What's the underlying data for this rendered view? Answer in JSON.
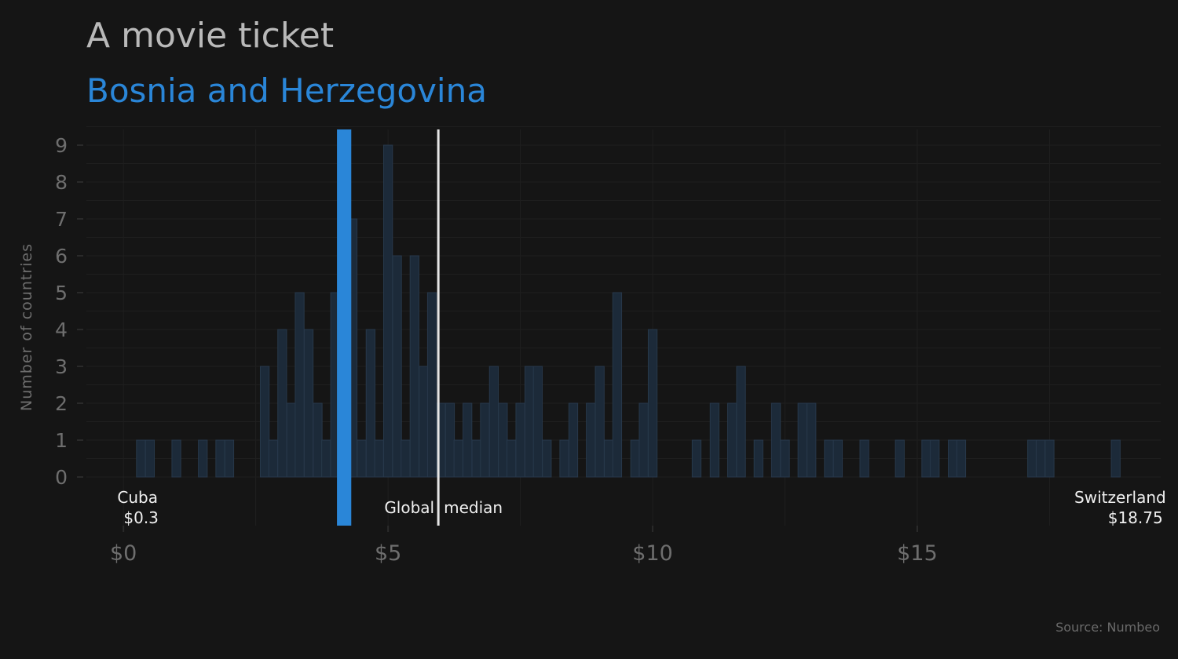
{
  "chart_data": {
    "type": "bar",
    "title": "A movie ticket",
    "subtitle": "Bosnia and Herzegovina",
    "ylabel": "Number of countries",
    "xlabel": "",
    "source": "Source: Numbeo",
    "xlim": [
      -0.7,
      19.6
    ],
    "ylim": [
      0,
      9.5
    ],
    "bin_width": 0.167,
    "x_ticks": [
      {
        "value": 0,
        "label": "$0"
      },
      {
        "value": 5,
        "label": "$5"
      },
      {
        "value": 10,
        "label": "$10"
      },
      {
        "value": 15,
        "label": "$15"
      }
    ],
    "y_ticks": [
      0,
      1,
      2,
      3,
      4,
      5,
      6,
      7,
      8,
      9
    ],
    "y_tick_labels": [
      "0",
      "1",
      "2",
      "3",
      "4",
      "5",
      "6",
      "7",
      "8",
      "9"
    ],
    "grid": true,
    "colors": {
      "background": "#151515",
      "bars": "#1c2a39",
      "bar_edge": "#27384a",
      "highlight": "#2a86d8",
      "median": "#e6e6e6",
      "title": "#b9b9b9",
      "axis_text": "#6e6e6e"
    },
    "bins": [
      {
        "x": 0.33,
        "count": 1
      },
      {
        "x": 0.5,
        "count": 1
      },
      {
        "x": 1.0,
        "count": 1
      },
      {
        "x": 1.5,
        "count": 1
      },
      {
        "x": 1.83,
        "count": 1
      },
      {
        "x": 2.0,
        "count": 1
      },
      {
        "x": 2.67,
        "count": 3
      },
      {
        "x": 2.83,
        "count": 1
      },
      {
        "x": 3.0,
        "count": 4
      },
      {
        "x": 3.17,
        "count": 2
      },
      {
        "x": 3.33,
        "count": 5
      },
      {
        "x": 3.5,
        "count": 4
      },
      {
        "x": 3.67,
        "count": 2
      },
      {
        "x": 3.83,
        "count": 1
      },
      {
        "x": 4.0,
        "count": 5
      },
      {
        "x": 4.17,
        "count": 4
      },
      {
        "x": 4.33,
        "count": 7
      },
      {
        "x": 4.5,
        "count": 1
      },
      {
        "x": 4.67,
        "count": 4
      },
      {
        "x": 4.83,
        "count": 1
      },
      {
        "x": 5.0,
        "count": 9
      },
      {
        "x": 5.17,
        "count": 6
      },
      {
        "x": 5.33,
        "count": 1
      },
      {
        "x": 5.5,
        "count": 6
      },
      {
        "x": 5.67,
        "count": 3
      },
      {
        "x": 5.83,
        "count": 5
      },
      {
        "x": 6.0,
        "count": 2
      },
      {
        "x": 6.17,
        "count": 2
      },
      {
        "x": 6.33,
        "count": 1
      },
      {
        "x": 6.5,
        "count": 2
      },
      {
        "x": 6.67,
        "count": 1
      },
      {
        "x": 6.83,
        "count": 2
      },
      {
        "x": 7.0,
        "count": 3
      },
      {
        "x": 7.17,
        "count": 2
      },
      {
        "x": 7.33,
        "count": 1
      },
      {
        "x": 7.5,
        "count": 2
      },
      {
        "x": 7.67,
        "count": 3
      },
      {
        "x": 7.83,
        "count": 3
      },
      {
        "x": 8.0,
        "count": 1
      },
      {
        "x": 8.33,
        "count": 1
      },
      {
        "x": 8.5,
        "count": 2
      },
      {
        "x": 8.83,
        "count": 2
      },
      {
        "x": 9.0,
        "count": 3
      },
      {
        "x": 9.17,
        "count": 1
      },
      {
        "x": 9.33,
        "count": 5
      },
      {
        "x": 9.67,
        "count": 1
      },
      {
        "x": 9.83,
        "count": 2
      },
      {
        "x": 10.0,
        "count": 4
      },
      {
        "x": 10.83,
        "count": 1
      },
      {
        "x": 11.17,
        "count": 2
      },
      {
        "x": 11.5,
        "count": 2
      },
      {
        "x": 11.67,
        "count": 3
      },
      {
        "x": 12.0,
        "count": 1
      },
      {
        "x": 12.33,
        "count": 2
      },
      {
        "x": 12.5,
        "count": 1
      },
      {
        "x": 12.83,
        "count": 2
      },
      {
        "x": 13.0,
        "count": 2
      },
      {
        "x": 13.33,
        "count": 1
      },
      {
        "x": 13.5,
        "count": 1
      },
      {
        "x": 14.0,
        "count": 1
      },
      {
        "x": 14.67,
        "count": 1
      },
      {
        "x": 15.17,
        "count": 1
      },
      {
        "x": 15.33,
        "count": 1
      },
      {
        "x": 15.67,
        "count": 1
      },
      {
        "x": 15.83,
        "count": 1
      },
      {
        "x": 17.17,
        "count": 1
      },
      {
        "x": 17.33,
        "count": 1
      },
      {
        "x": 17.5,
        "count": 1
      },
      {
        "x": 18.75,
        "count": 1
      }
    ],
    "highlight": {
      "label": "Bosnia and Herzegovina",
      "value": 4.17
    },
    "median": {
      "value": 5.95,
      "label_left": "Global",
      "label_right": "median"
    },
    "extremes": [
      {
        "name": "Cuba",
        "value": 0.3,
        "value_label": "$0.3",
        "anchor": "start"
      },
      {
        "name": "Switzerland",
        "value": 18.75,
        "value_label": "$18.75",
        "anchor": "end"
      }
    ]
  }
}
